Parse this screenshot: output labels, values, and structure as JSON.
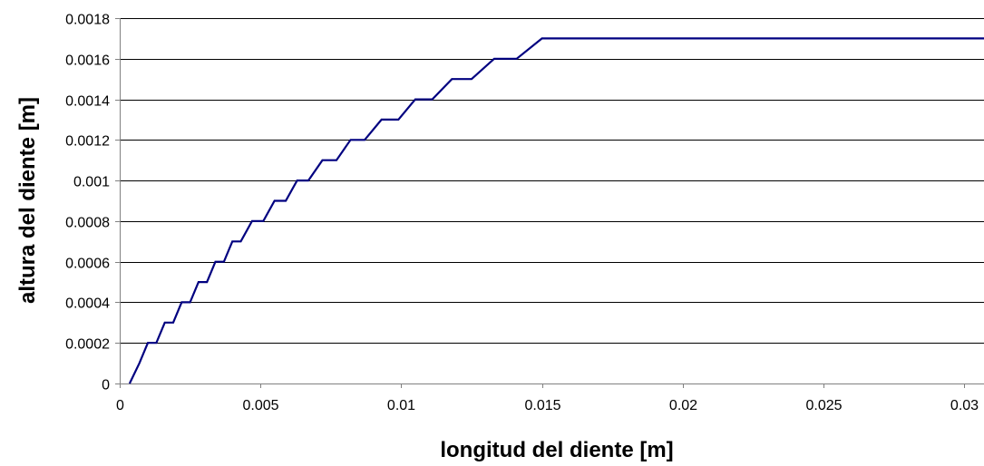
{
  "chart_data": {
    "type": "line",
    "title": "",
    "xlabel": "longitud del diente [m]",
    "ylabel": "altura del diente [m]",
    "xlim": [
      0,
      0.0307
    ],
    "ylim": [
      0,
      0.0018
    ],
    "x_ticks": [
      0,
      0.005,
      0.01,
      0.015,
      0.02,
      0.025,
      0.03
    ],
    "x_tick_labels": [
      "0",
      "0.005",
      "0.01",
      "0.015",
      "0.02",
      "0.025",
      "0.03"
    ],
    "y_ticks": [
      0,
      0.0002,
      0.0004,
      0.0006,
      0.0008,
      0.001,
      0.0012,
      0.0014,
      0.0016,
      0.0018
    ],
    "y_tick_labels": [
      "0",
      "0.0002",
      "0.0004",
      "0.0006",
      "0.0008",
      "0.001",
      "0.0012",
      "0.0014",
      "0.0016",
      "0.0018"
    ],
    "grid": "horizontal",
    "legend": "none",
    "series": [
      {
        "color": "#000080",
        "x": [
          0.00035,
          0.0007,
          0.001,
          0.0013,
          0.0016,
          0.0019,
          0.0022,
          0.0025,
          0.0028,
          0.0031,
          0.0034,
          0.0037,
          0.004,
          0.0043,
          0.0047,
          0.0051,
          0.0055,
          0.0059,
          0.0063,
          0.0067,
          0.0072,
          0.0077,
          0.0082,
          0.0087,
          0.0093,
          0.0099,
          0.0105,
          0.0111,
          0.0118,
          0.0125,
          0.0133,
          0.0141,
          0.015,
          0.0159,
          0.0174,
          0.0188,
          0.0219,
          0.0233,
          0.0307
        ],
        "y": [
          0,
          0.0001,
          0.0002,
          0.0002,
          0.0003,
          0.0003,
          0.0004,
          0.0004,
          0.0005,
          0.0005,
          0.0006,
          0.0006,
          0.0007,
          0.0007,
          0.0008,
          0.0008,
          0.0009,
          0.0009,
          0.001,
          0.001,
          0.0011,
          0.0011,
          0.0012,
          0.0012,
          0.0013,
          0.0013,
          0.0014,
          0.0014,
          0.0015,
          0.0015,
          0.0016,
          0.0016,
          0.0017,
          0.0017,
          0.0017,
          0.0017,
          0.0017,
          0.0017,
          0.0017
        ]
      }
    ]
  }
}
